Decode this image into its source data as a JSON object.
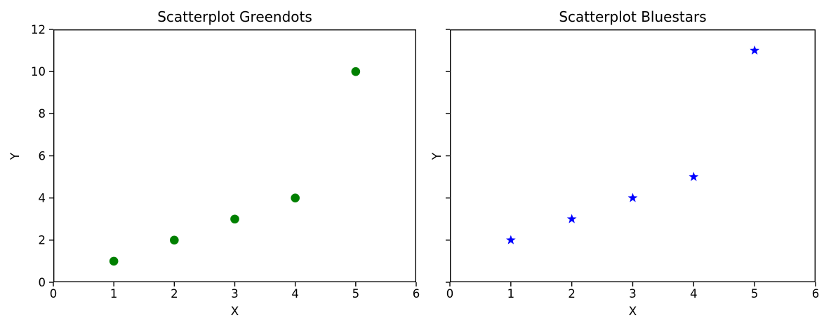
{
  "figure": {
    "background": "#ffffff",
    "text_color": "#000000"
  },
  "chart_data": [
    {
      "type": "scatter",
      "title": "Scatterplot Greendots",
      "xlabel": "X",
      "ylabel": "Y",
      "x": [
        1,
        2,
        3,
        4,
        5
      ],
      "y": [
        1,
        2,
        3,
        4,
        10
      ],
      "marker": "circle",
      "marker_color": "#008000",
      "xlim": [
        0,
        6
      ],
      "ylim": [
        0,
        12
      ],
      "xticks": [
        0,
        1,
        2,
        3,
        4,
        5,
        6
      ],
      "yticks": [
        0,
        2,
        4,
        6,
        8,
        10,
        12
      ],
      "ytick_labels_visible": true,
      "grid": false,
      "legend": null
    },
    {
      "type": "scatter",
      "title": "Scatterplot Bluestars",
      "xlabel": "X",
      "ylabel": "Y",
      "x": [
        1,
        2,
        3,
        4,
        5
      ],
      "y": [
        2,
        3,
        4,
        5,
        11
      ],
      "marker": "star",
      "marker_color": "#0000ff",
      "xlim": [
        0,
        6
      ],
      "ylim": [
        0,
        12
      ],
      "xticks": [
        0,
        1,
        2,
        3,
        4,
        5,
        6
      ],
      "yticks": [
        0,
        2,
        4,
        6,
        8,
        10,
        12
      ],
      "ytick_labels_visible": false,
      "grid": false,
      "legend": null
    }
  ]
}
